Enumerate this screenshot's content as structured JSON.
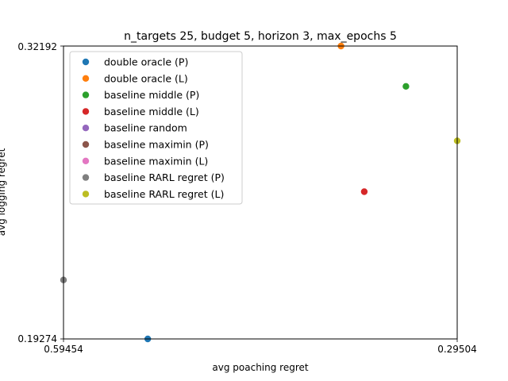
{
  "chart_data": {
    "type": "scatter",
    "title": "n_targets 25, budget 5, horizon 3, max_epochs 5",
    "xlabel": "avg poaching regret",
    "ylabel": "avg logging regret",
    "x_ticks": [
      "0.59454",
      "0.29504"
    ],
    "y_ticks": [
      "0.19274",
      "0.32192"
    ],
    "xlim": [
      0.59454,
      0.29504
    ],
    "ylim": [
      0.19274,
      0.32192
    ],
    "grid": false,
    "legend_position": "top-left",
    "series": [
      {
        "name": "double oracle (P)",
        "color": "#1f77b4",
        "points": [
          [
            0.53044,
            0.19274
          ]
        ]
      },
      {
        "name": "double oracle (L)",
        "color": "#ff7f0e",
        "points": [
          [
            0.38344,
            0.32192
          ]
        ]
      },
      {
        "name": "baseline middle (P)",
        "color": "#2ca02c",
        "points": [
          [
            0.33404,
            0.30414
          ]
        ]
      },
      {
        "name": "baseline middle (L)",
        "color": "#d62728",
        "points": [
          [
            0.36574,
            0.25768
          ]
        ]
      },
      {
        "name": "baseline random",
        "color": "#9467bd",
        "points": []
      },
      {
        "name": "baseline maximin (P)",
        "color": "#8c564b",
        "points": []
      },
      {
        "name": "baseline maximin (L)",
        "color": "#e377c2",
        "points": []
      },
      {
        "name": "baseline RARL regret (P)",
        "color": "#7f7f7f",
        "points": [
          [
            0.59454,
            0.21875
          ]
        ]
      },
      {
        "name": "baseline RARL regret (L)",
        "color": "#bcbd22",
        "points": [
          [
            0.29504,
            0.2801
          ]
        ]
      }
    ]
  }
}
